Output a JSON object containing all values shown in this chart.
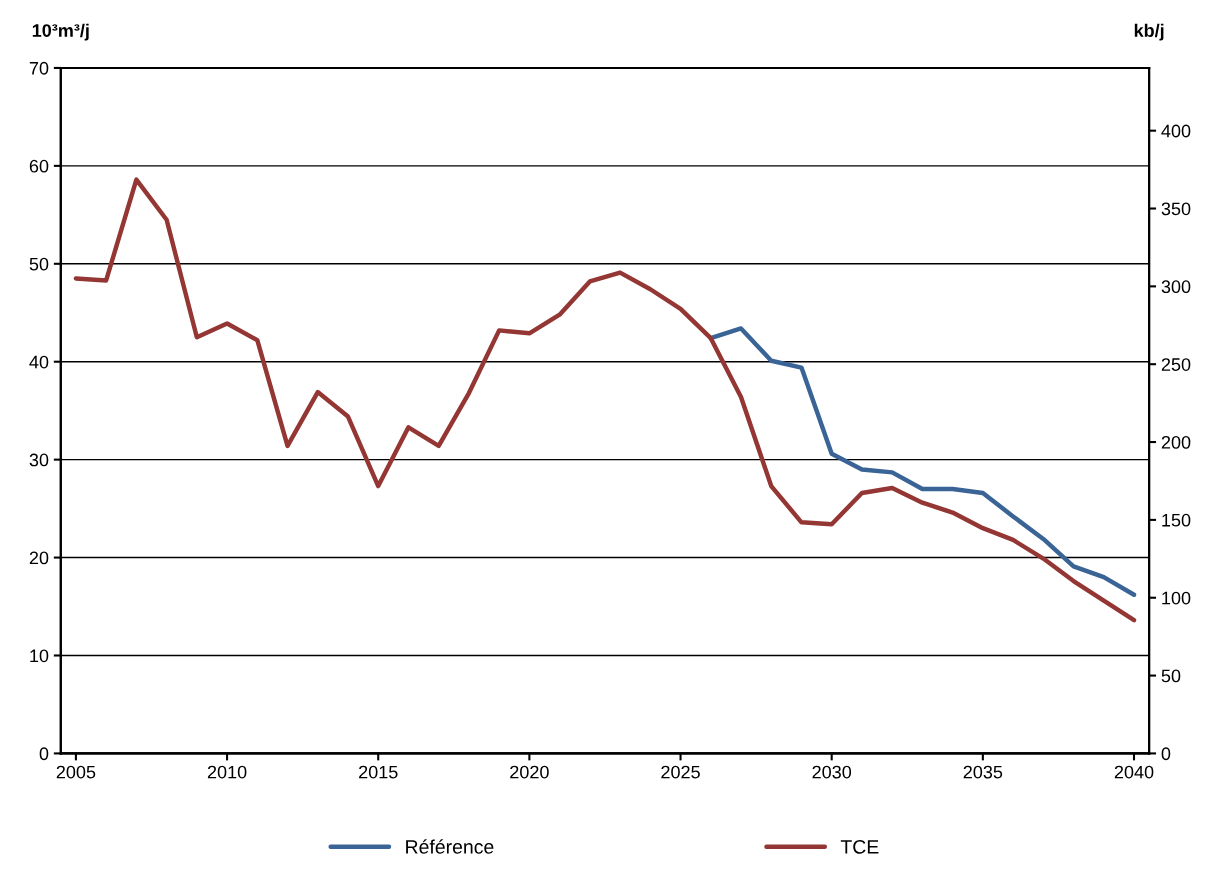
{
  "chart_data": {
    "type": "line",
    "ylabel": "10³m³/j",
    "y2label": "kb/j",
    "x": [
      2005,
      2006,
      2007,
      2008,
      2009,
      2010,
      2011,
      2012,
      2013,
      2014,
      2015,
      2016,
      2017,
      2018,
      2019,
      2020,
      2021,
      2022,
      2023,
      2024,
      2025,
      2026,
      2027,
      2028,
      2029,
      2030,
      2031,
      2032,
      2033,
      2034,
      2035,
      2036,
      2037,
      2038,
      2039,
      2040
    ],
    "series": [
      {
        "name": "Référence",
        "color": "#3a6496",
        "values": [
          null,
          null,
          null,
          null,
          null,
          null,
          null,
          null,
          null,
          null,
          null,
          null,
          null,
          null,
          null,
          null,
          null,
          null,
          null,
          null,
          null,
          42.4,
          43.4,
          40.1,
          39.4,
          30.6,
          29.0,
          28.7,
          27.0,
          27.0,
          26.6,
          24.2,
          21.9,
          19.1,
          18.0,
          16.2
        ]
      },
      {
        "name": "TCE",
        "color": "#943634",
        "values": [
          48.5,
          48.3,
          58.6,
          54.5,
          42.5,
          43.9,
          42.2,
          31.4,
          36.9,
          34.4,
          27.3,
          33.3,
          31.4,
          36.8,
          43.2,
          42.9,
          44.8,
          48.2,
          49.1,
          47.4,
          45.4,
          42.4,
          36.4,
          27.3,
          23.6,
          23.4,
          26.6,
          27.1,
          25.6,
          24.6,
          23.0,
          21.8,
          19.9,
          17.6,
          15.6,
          13.6
        ]
      }
    ],
    "xlim": [
      2004.5,
      2040.5
    ],
    "xticks": [
      2005,
      2010,
      2015,
      2020,
      2025,
      2030,
      2035,
      2040
    ],
    "ylim": [
      0,
      70
    ],
    "yticks": [
      0,
      10,
      20,
      30,
      40,
      50,
      60,
      70
    ],
    "y2lim": [
      0,
      440.3
    ],
    "y2ticks": [
      0,
      50,
      100,
      150,
      200,
      250,
      300,
      350,
      400
    ],
    "grid": "y",
    "legend": "bottom",
    "marker": "none",
    "line_style": "solid"
  }
}
